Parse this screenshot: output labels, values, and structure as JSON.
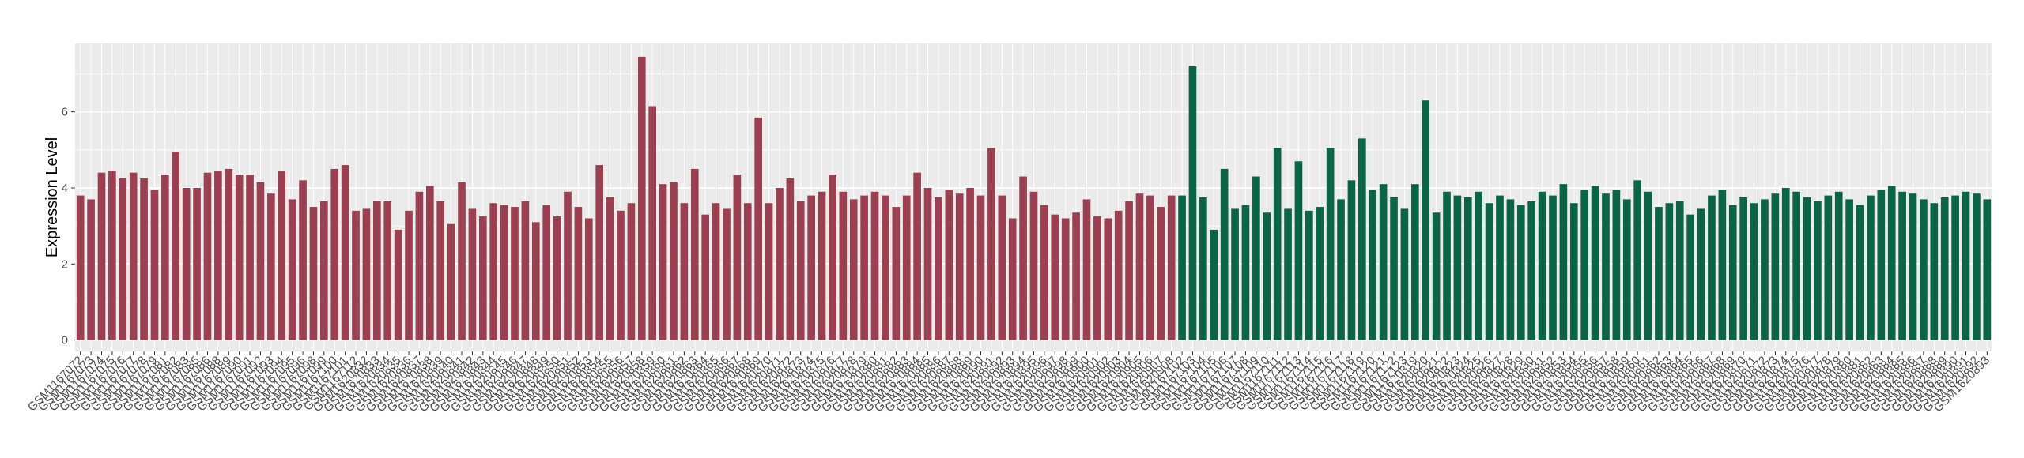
{
  "chart_data": {
    "type": "bar",
    "title": "",
    "xlabel": "",
    "ylabel": "Expression Level",
    "ylim": [
      -0.3,
      7.8
    ],
    "yticks": [
      0,
      2,
      4,
      6
    ],
    "grid": true,
    "legend": "none",
    "colors": {
      "group1": "#9a4050",
      "group2": "#0b6445",
      "panel": "#ebebeb",
      "gridline": "#ffffff"
    },
    "group1_count": 104,
    "categories": [
      "GSM1167072",
      "GSM1167073",
      "GSM1167074",
      "GSM1167075",
      "GSM1167076",
      "GSM1167077",
      "GSM1167078",
      "GSM1167079",
      "GSM1167081",
      "GSM1167082",
      "GSM1167083",
      "GSM1167085",
      "GSM1167086",
      "GSM1167088",
      "GSM1167089",
      "GSM1167090",
      "GSM1167091",
      "GSM1167092",
      "GSM1167093",
      "GSM1167094",
      "GSM1167095",
      "GSM1167096",
      "GSM1167098",
      "GSM1167099",
      "GSM1167100",
      "GSM1167101",
      "GSM1167112",
      "GSM1620832",
      "GSM1620833",
      "GSM1620834",
      "GSM1620835",
      "GSM1620836",
      "GSM1620837",
      "GSM1620838",
      "GSM1620839",
      "GSM1620840",
      "GSM1620841",
      "GSM1620842",
      "GSM1620843",
      "GSM1620844",
      "GSM1620845",
      "GSM1620846",
      "GSM1620847",
      "GSM1620848",
      "GSM1620849",
      "GSM1620850",
      "GSM1620851",
      "GSM1620852",
      "GSM1620853",
      "GSM1620854",
      "GSM1620855",
      "GSM1620856",
      "GSM1620857",
      "GSM1620858",
      "GSM1620859",
      "GSM1620860",
      "GSM1620861",
      "GSM1620862",
      "GSM1620863",
      "GSM1620864",
      "GSM1620865",
      "GSM1620866",
      "GSM1620867",
      "GSM1620868",
      "GSM1620869",
      "GSM1620870",
      "GSM1620871",
      "GSM1620872",
      "GSM1620873",
      "GSM1620874",
      "GSM1620875",
      "GSM1620876",
      "GSM1620877",
      "GSM1620878",
      "GSM1620879",
      "GSM1620880",
      "GSM1620881",
      "GSM1620882",
      "GSM1620883",
      "GSM1620884",
      "GSM1620885",
      "GSM1620886",
      "GSM1620887",
      "GSM1620888",
      "GSM1620889",
      "GSM1620890",
      "GSM1620891",
      "GSM1620892",
      "GSM1620893",
      "GSM1620894",
      "GSM1620895",
      "GSM1620896",
      "GSM1620897",
      "GSM1620898",
      "GSM1620899",
      "GSM1620900",
      "GSM1620901",
      "GSM1620902",
      "GSM1620903",
      "GSM1620904",
      "GSM1620905",
      "GSM1620906",
      "GSM1620907",
      "GSM1620908",
      "GSM1167102",
      "GSM1167103",
      "GSM1167104",
      "GSM1167105",
      "GSM1167106",
      "GSM1167107",
      "GSM1167108",
      "GSM1167109",
      "GSM1167110",
      "GSM1167111",
      "GSM1167112",
      "GSM1167113",
      "GSM1167114",
      "GSM1167115",
      "GSM1167116",
      "GSM1167117",
      "GSM1167118",
      "GSM1167119",
      "GSM1167120",
      "GSM1167121",
      "GSM1167122",
      "GSM1167123",
      "GSM1620819",
      "GSM1620820",
      "GSM1620821",
      "GSM1620822",
      "GSM1620823",
      "GSM1620824",
      "GSM1620825",
      "GSM1620826",
      "GSM1620827",
      "GSM1620828",
      "GSM1620829",
      "GSM1620830",
      "GSM1620831",
      "GSM1620852",
      "GSM1620853",
      "GSM1620854",
      "GSM1620855",
      "GSM1620856",
      "GSM1620857",
      "GSM1620858",
      "GSM1620859",
      "GSM1620860",
      "GSM1620861",
      "GSM1620862",
      "GSM1620863",
      "GSM1620864",
      "GSM1620865",
      "GSM1620866",
      "GSM1620867",
      "GSM1620868",
      "GSM1620869",
      "GSM1620870",
      "GSM1620871",
      "GSM1620872",
      "GSM1620873",
      "GSM1620874",
      "GSM1620875",
      "GSM1620876",
      "GSM1620877",
      "GSM1620878",
      "GSM1620879",
      "GSM1620880",
      "GSM1620881",
      "GSM1620882",
      "GSM1620883",
      "GSM1620884",
      "GSM1620885",
      "GSM1620886",
      "GSM1620887",
      "GSM1620888",
      "GSM1620889",
      "GSM1620890",
      "GSM1620891",
      "GSM1620892",
      "GSM1620893"
    ],
    "values": [
      3.8,
      3.7,
      4.4,
      4.45,
      4.25,
      4.4,
      4.25,
      3.95,
      4.35,
      4.95,
      4.0,
      4.0,
      4.4,
      4.45,
      4.5,
      4.35,
      4.35,
      4.15,
      3.85,
      4.45,
      3.7,
      4.2,
      3.5,
      3.65,
      4.5,
      4.6,
      3.4,
      3.45,
      3.65,
      3.65,
      2.9,
      3.4,
      3.9,
      4.05,
      3.65,
      3.05,
      4.15,
      3.45,
      3.25,
      3.6,
      3.55,
      3.5,
      3.65,
      3.1,
      3.55,
      3.25,
      3.9,
      3.5,
      3.2,
      4.6,
      3.75,
      3.4,
      3.6,
      7.45,
      6.15,
      4.1,
      4.15,
      3.6,
      4.5,
      3.3,
      3.6,
      3.45,
      4.35,
      3.6,
      5.85,
      3.6,
      4.0,
      4.25,
      3.65,
      3.8,
      3.9,
      4.35,
      3.9,
      3.7,
      3.8,
      3.9,
      3.8,
      3.5,
      3.8,
      4.4,
      4.0,
      3.75,
      3.95,
      3.85,
      4.0,
      3.8,
      5.05,
      3.8,
      3.2,
      4.3,
      3.9,
      3.55,
      3.3,
      3.2,
      3.35,
      3.7,
      3.25,
      3.2,
      3.4,
      3.65,
      3.85,
      3.8,
      3.5,
      3.8,
      3.8,
      7.2,
      3.75,
      2.9,
      4.5,
      3.45,
      3.55,
      4.3,
      3.35,
      5.05,
      3.45,
      4.7,
      3.4,
      3.5,
      5.05,
      3.7,
      4.2,
      5.3,
      3.95,
      4.1,
      3.75,
      3.45,
      4.1,
      6.3,
      3.35,
      3.9,
      3.8,
      3.75,
      3.9,
      3.6,
      3.8,
      3.7,
      3.55,
      3.65,
      3.9,
      3.8,
      4.1,
      3.6,
      3.95,
      4.05,
      3.85,
      3.95,
      3.7,
      4.2,
      3.9,
      3.5,
      3.6,
      3.65,
      3.3,
      3.45,
      3.8,
      3.95,
      3.55,
      3.75,
      3.6,
      3.7,
      3.85,
      4.0,
      3.9,
      3.75,
      3.65,
      3.8,
      3.9,
      3.7,
      3.55,
      3.8,
      3.95,
      4.05,
      3.9,
      3.85,
      3.7,
      3.6,
      3.75,
      3.8,
      3.9,
      3.85,
      3.7
    ]
  }
}
